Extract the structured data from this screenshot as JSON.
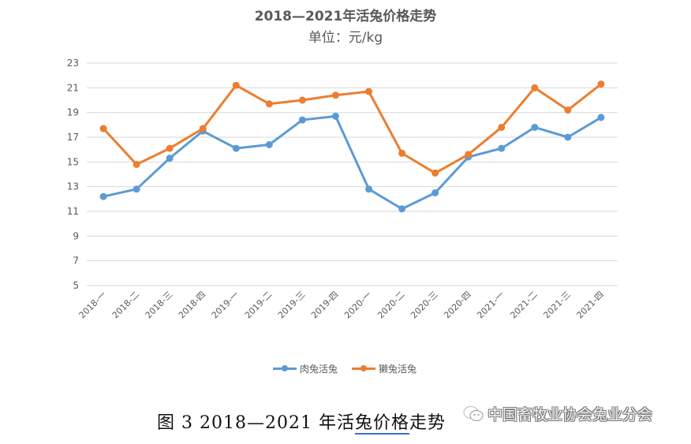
{
  "chart_data": {
    "type": "line",
    "title": "2018—2021年活兔价格走势",
    "subtitle": "单位：元/kg",
    "xlabel": "",
    "ylabel": "",
    "ylim": [
      5,
      23
    ],
    "yticks": [
      5,
      7,
      9,
      11,
      13,
      15,
      17,
      19,
      21,
      23
    ],
    "grid": true,
    "legend_position": "bottom",
    "categories": [
      "2018-一",
      "2018-二",
      "2018-三",
      "2018-四",
      "2019-一",
      "2019-二",
      "2019-三",
      "2019-四",
      "2020-一",
      "2020-二",
      "2020-三",
      "2020-四",
      "2021-一",
      "2021-二",
      "2021-三",
      "2021-四"
    ],
    "series": [
      {
        "name": "肉兔活兔",
        "color": "#5B9BD5",
        "values": [
          12.2,
          12.8,
          15.3,
          17.5,
          16.1,
          16.4,
          18.4,
          18.7,
          12.8,
          11.2,
          12.5,
          15.4,
          16.1,
          17.8,
          17.0,
          18.6
        ]
      },
      {
        "name": "獭兔活兔",
        "color": "#ED7D31",
        "values": [
          17.7,
          14.8,
          16.1,
          17.7,
          21.2,
          19.7,
          20.0,
          20.4,
          20.7,
          15.7,
          14.1,
          15.6,
          17.8,
          21.0,
          19.2,
          21.3
        ]
      }
    ]
  },
  "caption": {
    "prefix": "图 3   2018—2021 年活",
    "underlined": "兔价格",
    "suffix": "走势"
  },
  "watermark": {
    "text": "中国畜牧业协会兔业分会"
  }
}
